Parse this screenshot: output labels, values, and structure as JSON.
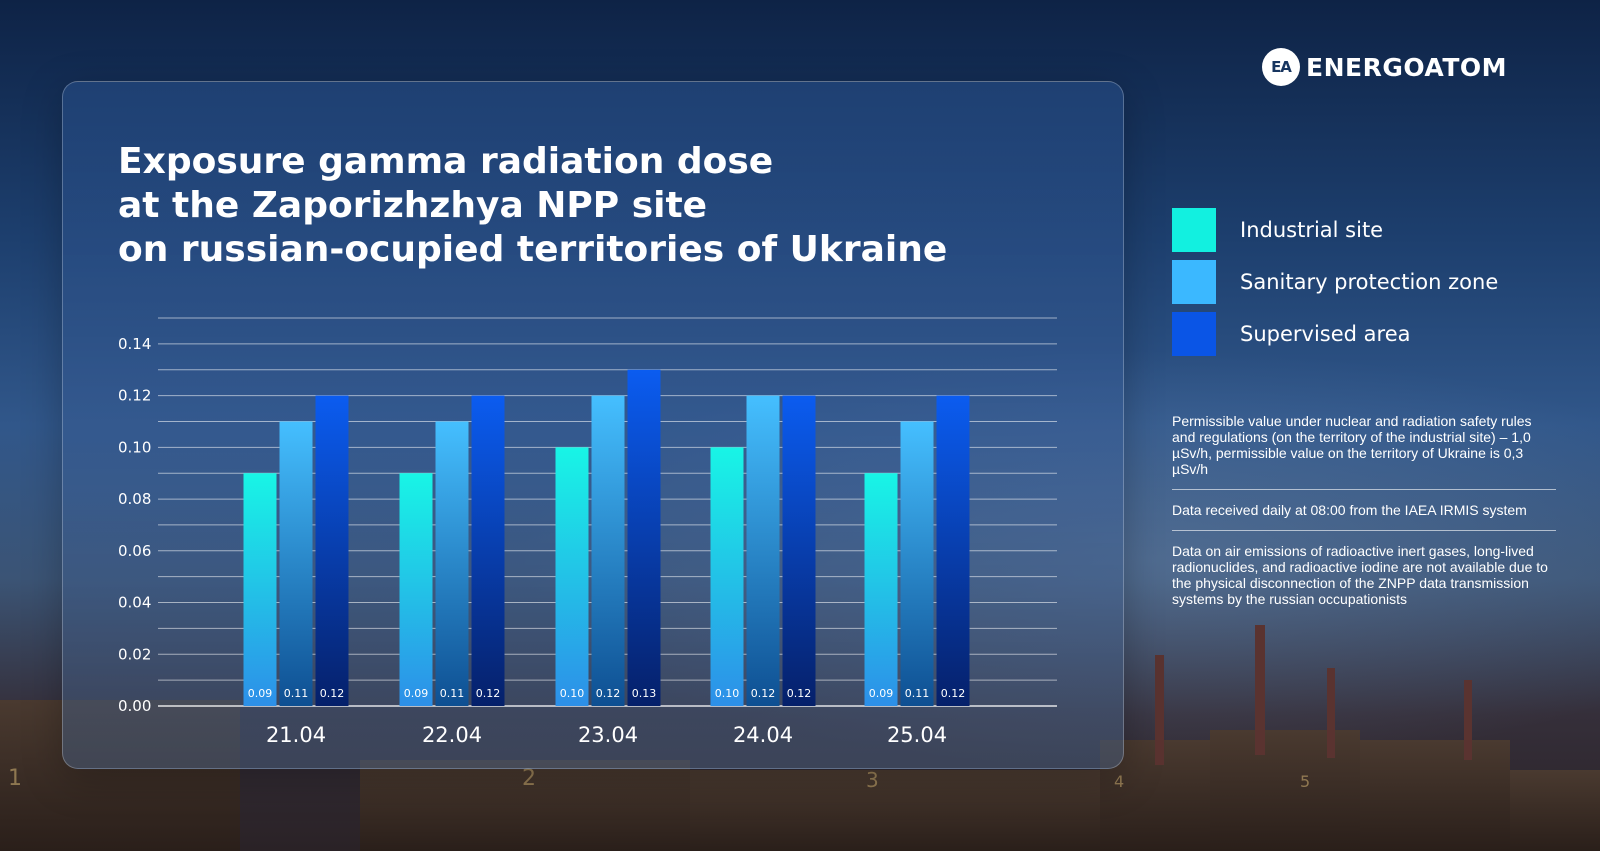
{
  "brand": {
    "name": "ENERGOATOM",
    "mark": "EA"
  },
  "title_lines": [
    "Exposure gamma radiation dose",
    "at the Zaporizhzhya NPP site",
    "on russian-ocupied territories of Ukraine"
  ],
  "chart_data": {
    "type": "bar",
    "title": "Exposure gamma radiation dose at the Zaporizhzhya NPP site on russian-ocupied territories of Ukraine",
    "categories": [
      "21.04",
      "22.04",
      "23.04",
      "24.04",
      "25.04"
    ],
    "series": [
      {
        "name": "Industrial site",
        "values": [
          0.09,
          0.09,
          0.1,
          0.1,
          0.09
        ],
        "labels": [
          "0.09",
          "0.09",
          "0.10",
          "0.10",
          "0.09"
        ]
      },
      {
        "name": "Sanitary protection zone",
        "values": [
          0.11,
          0.11,
          0.12,
          0.12,
          0.11
        ],
        "labels": [
          "0.11",
          "0.11",
          "0.12",
          "0.12",
          "0.11"
        ]
      },
      {
        "name": "Supervised area",
        "values": [
          0.12,
          0.12,
          0.13,
          0.12,
          0.12
        ],
        "labels": [
          "0.12",
          "0.12",
          "0.13",
          "0.12",
          "0.12"
        ]
      }
    ],
    "yticks": [
      "0.00",
      "0.02",
      "0.04",
      "0.06",
      "0.08",
      "0.10",
      "0.12",
      "0.14"
    ],
    "ylim": [
      0,
      0.15
    ],
    "grid": true,
    "legend_position": "right",
    "colors": [
      "#12f0e0",
      "#3bb8ff",
      "#0a55e6"
    ]
  },
  "legend": [
    {
      "label": "Industrial site",
      "color": "#12f0e0"
    },
    {
      "label": "Sanitary protection zone",
      "color": "#3bb8ff"
    },
    {
      "label": "Supervised area",
      "color": "#0a55e6"
    }
  ],
  "notes": [
    "Permissible value under nuclear and radiation safety rules and regulations (on the territory of the industrial site) – 1,0 µSv/h, permissible value on the territory of Ukraine is 0,3 µSv/h",
    "Data received daily at 08:00 from the IAEA IRMIS system",
    "Data on air emissions of radioactive inert gases, long-lived radionuclides, and radioactive iodine are not available due to the physical disconnection of the ZNPP data transmission systems by the russian occupationists"
  ],
  "background_numbers": [
    "1",
    "2",
    "3",
    "4",
    "5"
  ]
}
